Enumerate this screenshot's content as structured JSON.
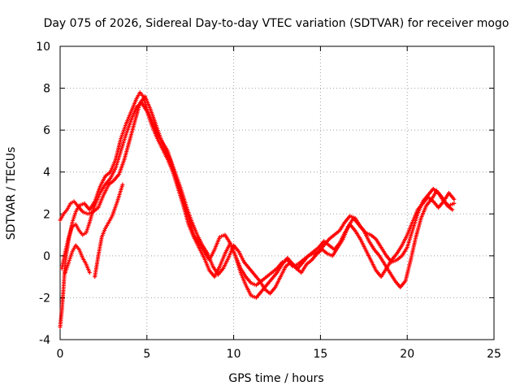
{
  "chart_data": {
    "type": "scatter",
    "title": "Day 075 of 2026, Sidereal Day-to-day VTEC variation (SDTVAR) for receiver mogo",
    "xlabel": "GPS time / hours",
    "ylabel": "SDTVAR / TECUs",
    "xlim": [
      0,
      25
    ],
    "ylim": [
      -4,
      10
    ],
    "xticks": [
      0,
      5,
      10,
      15,
      20,
      25
    ],
    "yticks": [
      -4,
      -2,
      0,
      2,
      4,
      6,
      8,
      10
    ],
    "grid": true,
    "marker": "+",
    "color": "#ff0000",
    "series": [
      {
        "name": "trace-1",
        "x": [
          0.0,
          0.1,
          0.2,
          0.3,
          0.5,
          0.7,
          0.9,
          1.1,
          1.4,
          1.7,
          2.0,
          2.3,
          2.6,
          2.9,
          3.2,
          3.5,
          3.8,
          4.1,
          4.4,
          4.6,
          4.8,
          5.0,
          5.3,
          5.6,
          5.9,
          6.2,
          6.5,
          6.8,
          7.1,
          7.4,
          7.7,
          8.0,
          8.3,
          8.6,
          8.9,
          9.2,
          9.5,
          9.8,
          10.1,
          10.4,
          10.7,
          11.0,
          11.3,
          11.6,
          11.9,
          12.2,
          12.5,
          12.8,
          13.1,
          13.4,
          13.7,
          14.0,
          14.3,
          14.6,
          14.9,
          15.2,
          15.5,
          15.8,
          16.1,
          16.4,
          16.7,
          17.0,
          17.3,
          17.6,
          17.9,
          18.2,
          18.5,
          18.8,
          19.1,
          19.4,
          19.7,
          20.0,
          20.3,
          20.6,
          20.9,
          21.2,
          21.5,
          21.8,
          22.1,
          22.4,
          22.7
        ],
        "y": [
          -3.4,
          -2.6,
          -1.5,
          -0.2,
          0.8,
          1.6,
          2.1,
          2.4,
          2.5,
          2.2,
          2.6,
          3.3,
          3.8,
          4.0,
          4.6,
          5.6,
          6.3,
          6.9,
          7.5,
          7.8,
          7.6,
          7.0,
          6.4,
          5.8,
          5.4,
          5.0,
          4.2,
          3.4,
          2.6,
          1.8,
          1.0,
          0.6,
          0.2,
          -0.2,
          0.3,
          0.9,
          1.0,
          0.6,
          0.0,
          -0.6,
          -1.0,
          -1.3,
          -1.4,
          -1.2,
          -1.0,
          -0.8,
          -0.6,
          -0.3,
          -0.2,
          -0.5,
          -0.4,
          -0.2,
          0.0,
          0.1,
          0.2,
          0.5,
          0.8,
          1.0,
          1.2,
          1.6,
          1.9,
          1.8,
          1.4,
          1.1,
          1.0,
          0.8,
          0.4,
          0.0,
          -0.3,
          -0.2,
          0.0,
          0.4,
          1.2,
          2.0,
          2.6,
          2.9,
          3.2,
          3.0,
          2.6,
          2.4,
          2.5
        ]
      },
      {
        "name": "trace-2",
        "x": [
          0.0,
          0.2,
          0.4,
          0.6,
          0.8,
          1.0,
          1.3,
          1.6,
          1.9,
          2.2,
          2.5,
          2.8,
          3.1,
          3.4,
          3.7,
          4.0,
          4.3,
          4.6,
          4.9,
          5.2,
          5.5,
          5.8,
          6.1,
          6.4,
          6.7,
          7.0,
          7.3,
          7.6,
          7.9,
          8.2,
          8.5,
          8.8,
          9.1,
          9.4,
          9.7,
          10.0,
          10.3,
          10.6,
          10.9,
          11.2,
          11.5,
          11.8,
          12.1,
          12.4,
          12.7,
          13.0,
          13.3,
          13.6,
          13.9,
          14.2,
          14.5,
          14.8,
          15.1,
          15.4,
          15.7,
          16.0,
          16.3,
          16.6,
          16.9,
          17.2,
          17.5,
          17.8,
          18.1,
          18.4,
          18.7,
          19.0,
          19.3,
          19.6,
          19.9,
          20.2,
          20.5,
          20.8,
          21.1,
          21.4,
          21.7,
          22.0,
          22.3,
          22.6
        ],
        "y": [
          1.7,
          2.0,
          2.2,
          2.5,
          2.6,
          2.4,
          2.1,
          2.0,
          2.1,
          2.3,
          2.9,
          3.4,
          3.6,
          3.9,
          4.6,
          5.5,
          6.4,
          7.3,
          7.6,
          7.0,
          6.3,
          5.6,
          5.0,
          4.5,
          3.8,
          3.1,
          2.3,
          1.6,
          1.0,
          0.5,
          0.1,
          -0.5,
          -0.9,
          -0.6,
          -0.1,
          0.5,
          0.2,
          -0.3,
          -0.6,
          -0.9,
          -1.2,
          -1.6,
          -1.8,
          -1.5,
          -1.0,
          -0.5,
          -0.3,
          -0.6,
          -0.8,
          -0.4,
          -0.2,
          0.1,
          0.3,
          0.1,
          0.0,
          0.4,
          0.8,
          1.4,
          1.8,
          1.5,
          1.2,
          0.7,
          0.3,
          0.0,
          -0.4,
          -0.8,
          -1.2,
          -1.5,
          -1.2,
          -0.2,
          0.9,
          1.8,
          2.4,
          2.7,
          3.1,
          2.8,
          2.4,
          2.2
        ]
      },
      {
        "name": "trace-3",
        "x": [
          0.1,
          0.3,
          0.5,
          0.7,
          0.9,
          1.1,
          1.3,
          1.5,
          1.7,
          1.9,
          2.1,
          2.3,
          2.6,
          2.9,
          3.2,
          3.5,
          3.8,
          4.1,
          4.4,
          4.7,
          5.0,
          5.3,
          5.6,
          5.9,
          6.2,
          6.5,
          6.8,
          7.1,
          7.4,
          7.7,
          8.0,
          8.3,
          8.6,
          8.9,
          9.2,
          9.5,
          9.8,
          10.1,
          10.4,
          10.7,
          11.0,
          11.3,
          11.6,
          11.9,
          12.2,
          12.5,
          12.8,
          13.1,
          13.4,
          13.7,
          14.0,
          14.3,
          14.6,
          14.9,
          15.2,
          15.5,
          15.8,
          16.1,
          16.4,
          16.7,
          17.0,
          17.3,
          17.6,
          17.9,
          18.2,
          18.5,
          18.8,
          19.1,
          19.4,
          19.7,
          20.0,
          20.3,
          20.6,
          20.9,
          21.2,
          21.5,
          21.8,
          22.1,
          22.4,
          22.7
        ],
        "y": [
          -0.6,
          0.2,
          0.9,
          1.4,
          1.5,
          1.2,
          1.0,
          1.1,
          1.6,
          2.2,
          2.6,
          3.0,
          3.4,
          3.7,
          4.2,
          5.0,
          5.8,
          6.5,
          7.1,
          7.3,
          6.9,
          6.2,
          5.6,
          5.1,
          4.6,
          4.0,
          3.2,
          2.4,
          1.5,
          0.9,
          0.4,
          -0.1,
          -0.7,
          -1.0,
          -0.5,
          0.1,
          0.6,
          0.0,
          -0.8,
          -1.4,
          -1.9,
          -2.0,
          -1.7,
          -1.4,
          -1.1,
          -0.8,
          -0.4,
          -0.1,
          -0.4,
          -0.6,
          -0.3,
          0.0,
          0.2,
          0.4,
          0.7,
          0.5,
          0.3,
          0.6,
          1.1,
          1.5,
          1.2,
          0.8,
          0.3,
          -0.2,
          -0.7,
          -1.0,
          -0.6,
          -0.2,
          0.1,
          0.5,
          1.0,
          1.6,
          2.2,
          2.5,
          2.8,
          2.6,
          2.3,
          2.6,
          3.0,
          2.7
        ]
      },
      {
        "name": "trace-4",
        "x": [
          0.3,
          0.5,
          0.7,
          0.9,
          1.1,
          1.3,
          1.5,
          1.7
        ],
        "y": [
          -0.8,
          -0.3,
          0.2,
          0.5,
          0.3,
          -0.1,
          -0.4,
          -0.8
        ]
      },
      {
        "name": "trace-5",
        "x": [
          2.0,
          2.2,
          2.4,
          2.6,
          2.8,
          3.0,
          3.3,
          3.6
        ],
        "y": [
          -1.0,
          0.0,
          0.9,
          1.3,
          1.6,
          1.9,
          2.6,
          3.4
        ]
      }
    ]
  }
}
